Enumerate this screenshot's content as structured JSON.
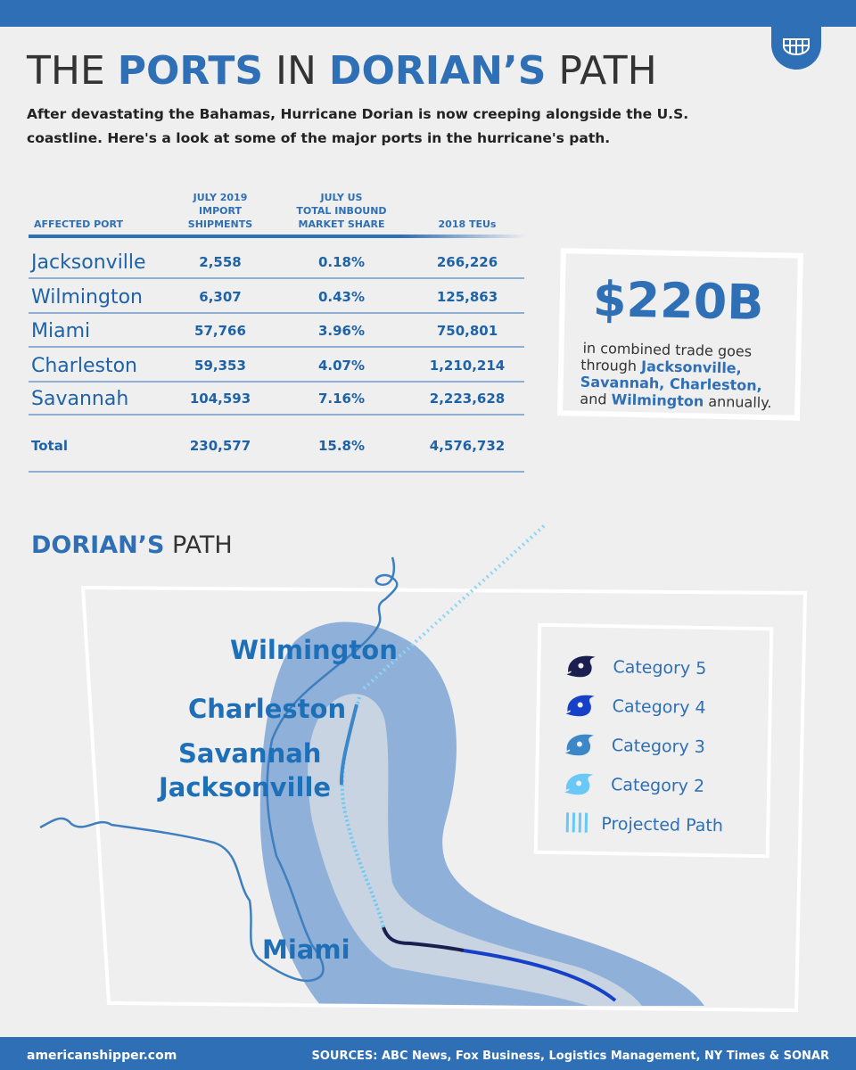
{
  "header": {
    "title": [
      "THE",
      "PORTS",
      "IN",
      "DORIAN’S",
      "PATH"
    ],
    "subtitle": [
      "After devastating the Bahamas, Hurricane Dorian is now creeping alongside the U.S.",
      "coastline. Here's a look at some of the major ports in the hurricane's path."
    ]
  },
  "table": {
    "columns": [
      [
        "AFFECTED PORT"
      ],
      [
        "JULY 2019",
        "IMPORT",
        "SHIPMENTS"
      ],
      [
        "JULY US",
        "TOTAL INBOUND",
        "MARKET SHARE"
      ],
      [
        "2018 TEUs"
      ]
    ],
    "rows": [
      [
        "Jacksonville",
        "2,558",
        "0.18%",
        "266,226"
      ],
      [
        "Wilmington",
        "6,307",
        "0.43%",
        "125,863"
      ],
      [
        "Miami",
        "57,766",
        "3.96%",
        "750,801"
      ],
      [
        "Charleston",
        "59,353",
        "4.07%",
        "1,210,214"
      ],
      [
        "Savannah",
        "104,593",
        "7.16%",
        "2,223,628"
      ]
    ],
    "total": [
      "Total",
      "230,577",
      "15.8%",
      "4,576,732"
    ]
  },
  "callout": {
    "value": "$220B",
    "text": [
      "in combined trade goes",
      "through",
      "Jacksonville,",
      "Savannah, Charleston,",
      "and",
      "Wilmington",
      "annually."
    ]
  },
  "map": {
    "title": [
      "DORIAN’S",
      "PATH"
    ],
    "labels": [
      "Wilmington",
      "Charleston",
      "Savannah",
      "Jacksonville",
      "Miami"
    ],
    "legend": [
      "Category 5",
      "Category 4",
      "Category 3",
      "Category 2",
      "Projected Path"
    ]
  },
  "footer": {
    "site": "americanshipper.com",
    "sources": "SOURCES: ABC News, Fox Business, Logistics Management, NY Times & SONAR"
  }
}
